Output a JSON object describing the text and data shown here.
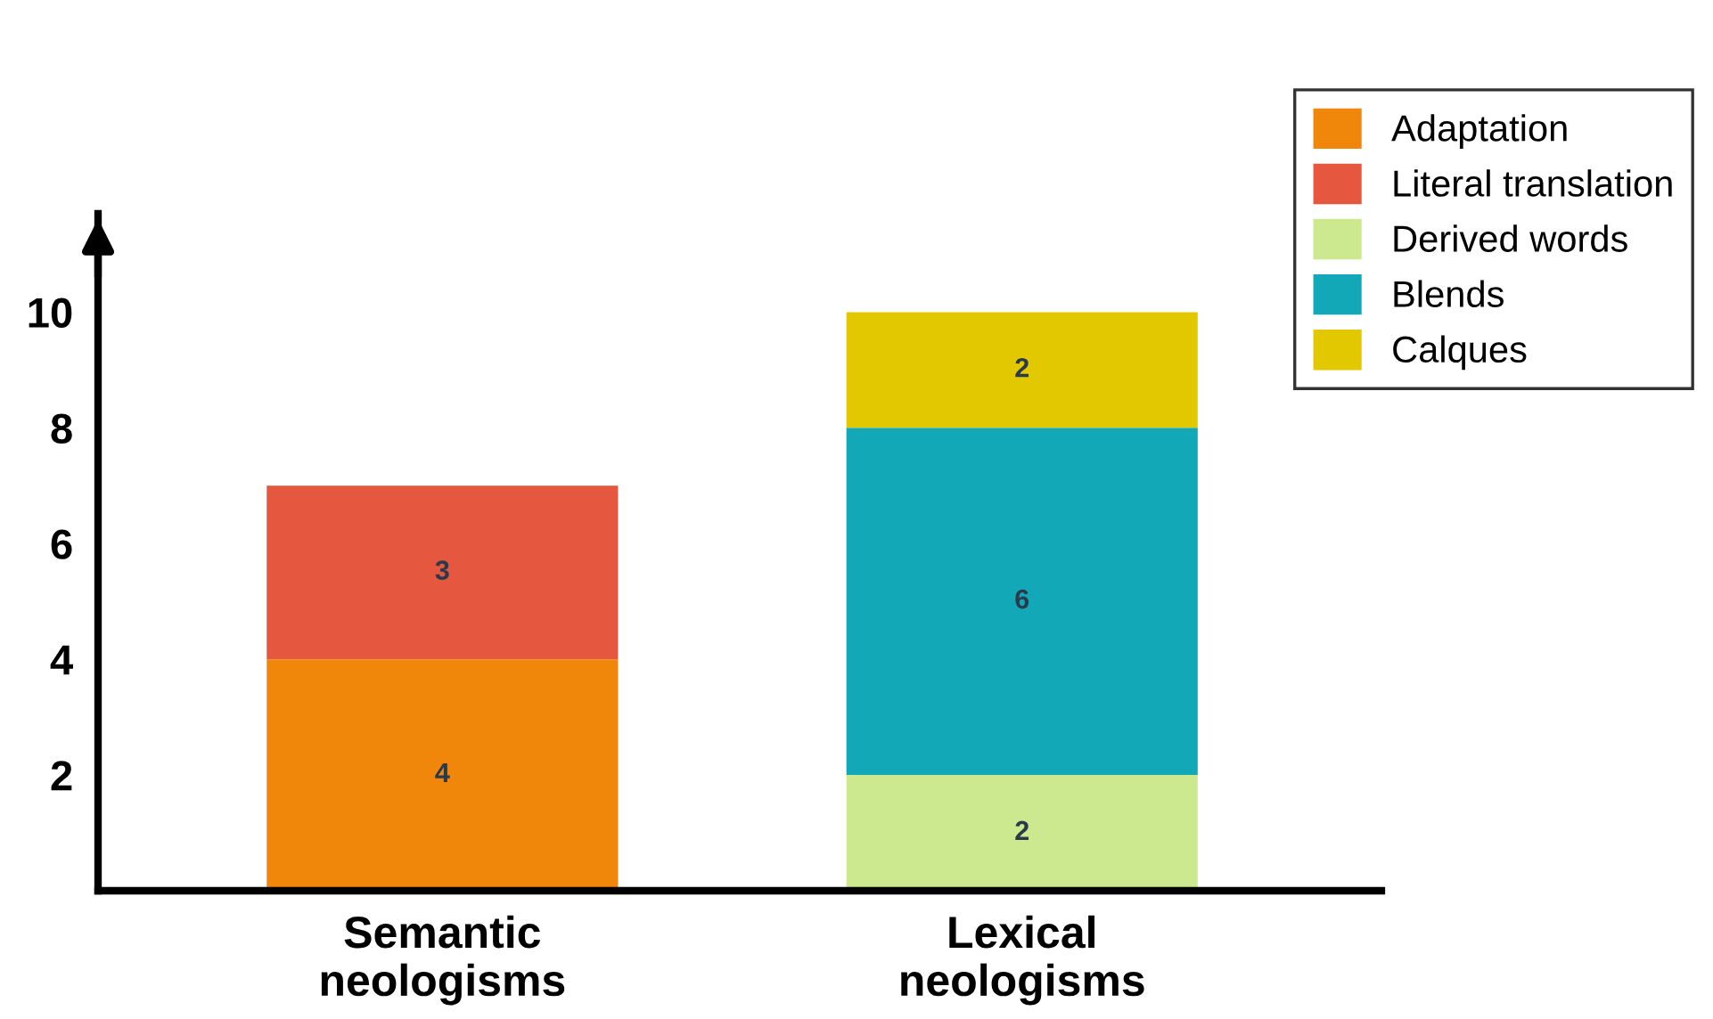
{
  "chart_data": {
    "type": "bar",
    "stacked": true,
    "categories": [
      "Semantic\nneologisms",
      "Lexical\nneologisms"
    ],
    "series": [
      {
        "name": "Adaptation",
        "color": "#f0870a",
        "values": [
          4,
          null
        ]
      },
      {
        "name": "Literal translation",
        "color": "#e5583f",
        "values": [
          3,
          null
        ]
      },
      {
        "name": "Derived words",
        "color": "#cde98f",
        "values": [
          null,
          2
        ]
      },
      {
        "name": "Blends",
        "color": "#13a8b8",
        "values": [
          null,
          6
        ]
      },
      {
        "name": "Calques",
        "color": "#e2c800",
        "values": [
          null,
          2
        ]
      }
    ],
    "ylim": [
      0,
      11.7
    ],
    "yticks": [
      2,
      4,
      6,
      8,
      10
    ],
    "grid": false,
    "legend": "top right",
    "data_labels": true
  }
}
